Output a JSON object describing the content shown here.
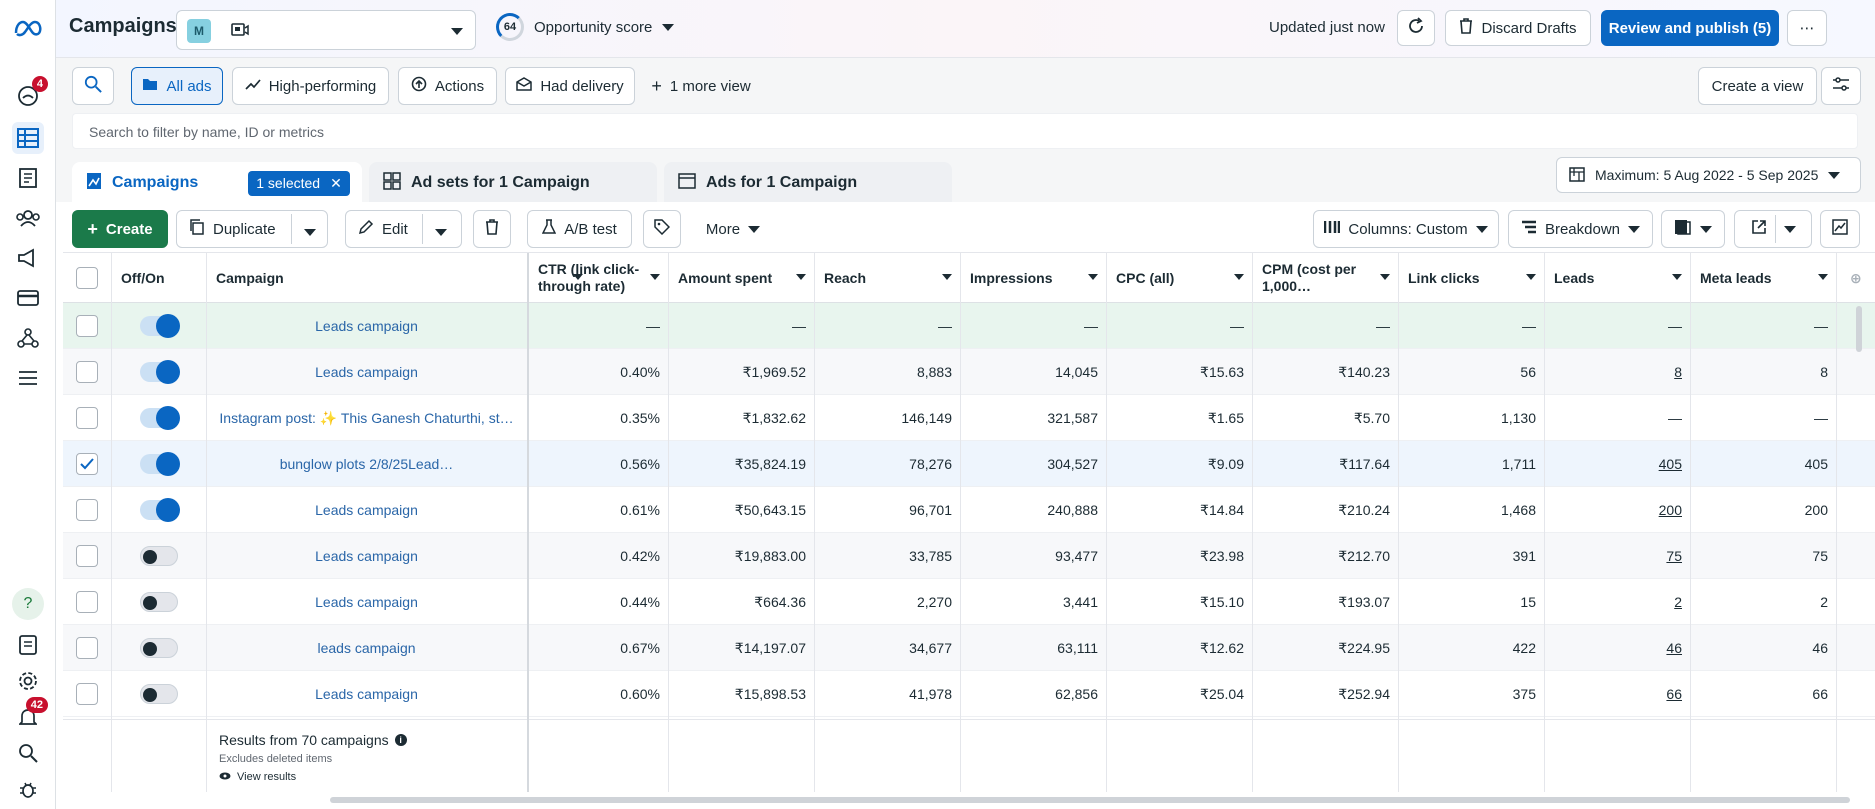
{
  "header": {
    "title": "Campaigns",
    "account_initial": "M",
    "opportunity_score": "64",
    "opportunity_label": "Opportunity score",
    "updated": "Updated just now",
    "discard": "Discard Drafts",
    "publish": "Review and publish (5)"
  },
  "rail": {
    "notifications_badge": "4",
    "alerts_badge": "42"
  },
  "views": {
    "all_ads": "All ads",
    "high_performing": "High-performing",
    "actions": "Actions",
    "had_delivery": "Had delivery",
    "more_view": "1 more view",
    "create_view": "Create a view"
  },
  "search": {
    "placeholder": "Search to filter by name, ID or metrics"
  },
  "levels": {
    "campaigns": "Campaigns",
    "selected": "1 selected",
    "adsets": "Ad sets for 1 Campaign",
    "ads": "Ads for 1 Campaign",
    "date_range": "Maximum: 5 Aug 2022 - 5 Sep 2025"
  },
  "actions": {
    "create": "Create",
    "duplicate": "Duplicate",
    "edit": "Edit",
    "ab_test": "A/B test",
    "more": "More",
    "columns": "Columns: Custom",
    "breakdown": "Breakdown"
  },
  "table": {
    "headers": {
      "offon": "Off/On",
      "campaign": "Campaign",
      "ctr_1": "CTR (link click-",
      "ctr_2": "through rate)",
      "amount": "Amount spent",
      "reach": "Reach",
      "impressions": "Impressions",
      "cpc": "CPC (all)",
      "cpm_1": "CPM (cost per",
      "cpm_2": "1,000…",
      "link_clicks": "Link clicks",
      "leads": "Leads",
      "meta_leads": "Meta leads"
    },
    "rows": [
      {
        "on": true,
        "checked": false,
        "name": "Leads campaign",
        "ctr": "—",
        "amount": "—",
        "reach": "—",
        "impr": "—",
        "cpc": "—",
        "cpm": "—",
        "clicks": "—",
        "leads": "—",
        "meta": "—"
      },
      {
        "on": true,
        "checked": false,
        "name": "Leads campaign",
        "ctr": "0.40%",
        "amount": "₹1,969.52",
        "reach": "8,883",
        "impr": "14,045",
        "cpc": "₹15.63",
        "cpm": "₹140.23",
        "clicks": "56",
        "leads": "8",
        "meta": "8"
      },
      {
        "on": true,
        "checked": false,
        "name": "Instagram post: ✨ This Ganesh Chaturthi, st…",
        "ctr": "0.35%",
        "amount": "₹1,832.62",
        "reach": "146,149",
        "impr": "321,587",
        "cpc": "₹1.65",
        "cpm": "₹5.70",
        "clicks": "1,130",
        "leads": "—",
        "meta": "—"
      },
      {
        "on": true,
        "checked": true,
        "name": "bunglow plots 2/8/25Lead…",
        "ctr": "0.56%",
        "amount": "₹35,824.19",
        "reach": "78,276",
        "impr": "304,527",
        "cpc": "₹9.09",
        "cpm": "₹117.64",
        "clicks": "1,711",
        "leads": "405",
        "meta": "405"
      },
      {
        "on": true,
        "checked": false,
        "name": "Leads campaign",
        "ctr": "0.61%",
        "amount": "₹50,643.15",
        "reach": "96,701",
        "impr": "240,888",
        "cpc": "₹14.84",
        "cpm": "₹210.24",
        "clicks": "1,468",
        "leads": "200",
        "meta": "200"
      },
      {
        "on": false,
        "checked": false,
        "name": "Leads campaign",
        "ctr": "0.42%",
        "amount": "₹19,883.00",
        "reach": "33,785",
        "impr": "93,477",
        "cpc": "₹23.98",
        "cpm": "₹212.70",
        "clicks": "391",
        "leads": "75",
        "meta": "75"
      },
      {
        "on": false,
        "checked": false,
        "name": "Leads campaign",
        "ctr": "0.44%",
        "amount": "₹664.36",
        "reach": "2,270",
        "impr": "3,441",
        "cpc": "₹15.10",
        "cpm": "₹193.07",
        "clicks": "15",
        "leads": "2",
        "meta": "2"
      },
      {
        "on": false,
        "checked": false,
        "name": "leads campaign",
        "ctr": "0.67%",
        "amount": "₹14,197.07",
        "reach": "34,677",
        "impr": "63,111",
        "cpc": "₹12.62",
        "cpm": "₹224.95",
        "clicks": "422",
        "leads": "46",
        "meta": "46"
      },
      {
        "on": false,
        "checked": false,
        "name": "Leads campaign",
        "ctr": "0.60%",
        "amount": "₹15,898.53",
        "reach": "41,978",
        "impr": "62,856",
        "cpc": "₹25.04",
        "cpm": "₹252.94",
        "clicks": "375",
        "leads": "66",
        "meta": "66"
      }
    ],
    "footer": {
      "results": "Results from 70 campaigns",
      "excludes": "Excludes deleted items",
      "view_results": "View results"
    }
  }
}
